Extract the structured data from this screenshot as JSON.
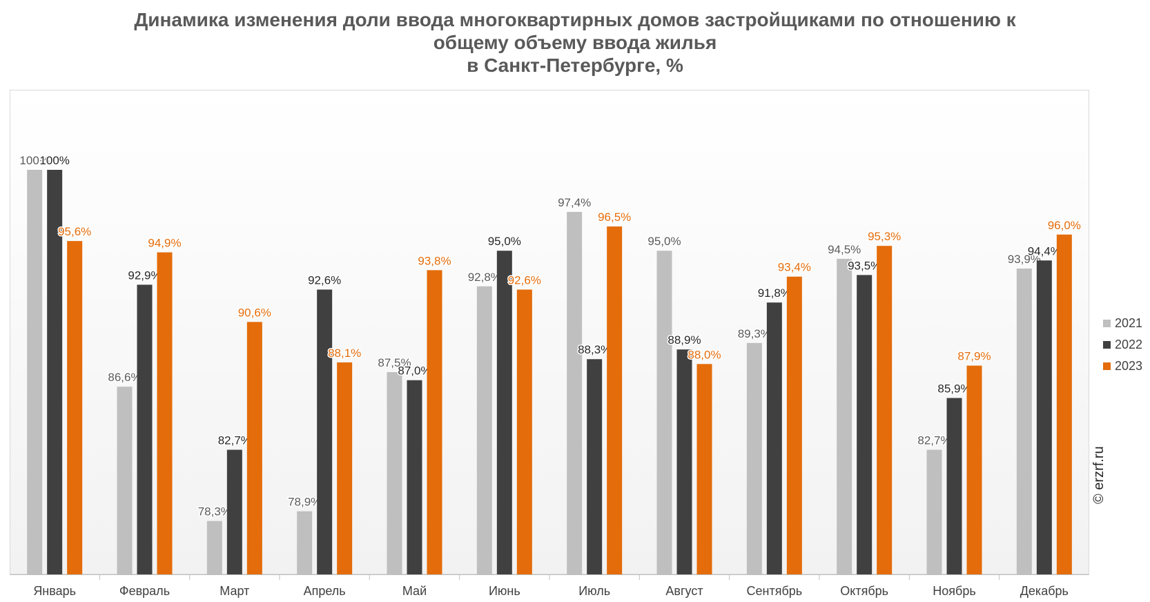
{
  "title": {
    "line1": "Динамика изменения доли ввода многоквартирных домов застройщиками по отношению к",
    "line2": "общему объему ввода жилья",
    "line3": "в Санкт-Петербурге, %"
  },
  "credit": "© erzrf.ru",
  "chart_data": {
    "type": "bar",
    "title": "Динамика изменения доли ввода многоквартирных домов застройщиками по отношению к общему объему ввода жилья в Санкт-Петербурге, %",
    "categories": [
      "Январь",
      "Февраль",
      "Март",
      "Апрель",
      "Май",
      "Июнь",
      "Июль",
      "Август",
      "Сентябрь",
      "Октябрь",
      "Ноябрь",
      "Декабрь"
    ],
    "series": [
      {
        "name": "2021",
        "color": "#bfbfbf",
        "label_color": "#595959",
        "values": [
          100,
          86.6,
          78.3,
          78.9,
          87.5,
          92.8,
          97.4,
          95.0,
          89.3,
          94.5,
          82.7,
          93.9
        ],
        "labels": [
          "100%",
          "86,6%",
          "78,3%",
          "78,9%",
          "87,5%",
          "92,8%",
          "97,4%",
          "95,0%",
          "89,3%",
          "94,5%",
          "82,7%",
          "93,9%"
        ]
      },
      {
        "name": "2022",
        "color": "#404040",
        "label_color": "#262626",
        "values": [
          100,
          92.9,
          82.7,
          92.6,
          87.0,
          95.0,
          88.3,
          88.9,
          91.8,
          93.5,
          85.9,
          94.4
        ],
        "labels": [
          "100%",
          "92,9%",
          "82,7%",
          "92,6%",
          "87,0%",
          "95,0%",
          "88,3%",
          "88,9%",
          "91,8%",
          "93,5%",
          "85,9%",
          "94,4%"
        ]
      },
      {
        "name": "2023",
        "color": "#e46c0a",
        "label_color": "#e46c0a",
        "values": [
          95.6,
          94.9,
          90.6,
          88.1,
          93.8,
          92.6,
          96.5,
          88.0,
          93.4,
          95.3,
          87.9,
          96.0
        ],
        "labels": [
          "95,6%",
          "94,9%",
          "90,6%",
          "88,1%",
          "93,8%",
          "92,6%",
          "96,5%",
          "88,0%",
          "93,4%",
          "95,3%",
          "87,9%",
          "96,0%"
        ]
      }
    ],
    "xlabel": "",
    "ylabel": "",
    "ylim": [
      75,
      100
    ],
    "grid": false,
    "legend": "right"
  }
}
